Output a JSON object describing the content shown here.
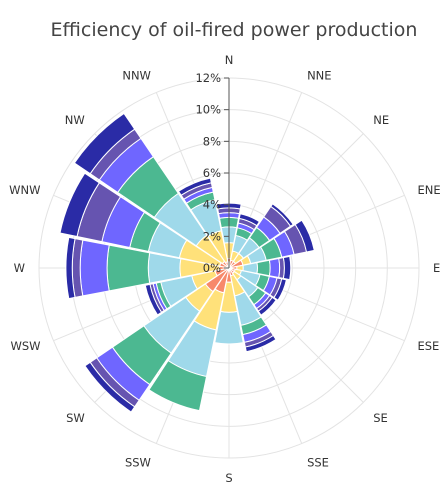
{
  "chart_data": {
    "type": "polar-stacked-bar",
    "title": "Efficiency of oil-fired power production",
    "directions": [
      "N",
      "NNE",
      "NE",
      "ENE",
      "E",
      "ESE",
      "SE",
      "SSE",
      "S",
      "SSW",
      "SW",
      "WSW",
      "W",
      "WNW",
      "NW",
      "NNW"
    ],
    "radial_ticks": [
      "0%",
      "2%",
      "4%",
      "6%",
      "8%",
      "10%",
      "12%"
    ],
    "rlim": [
      0,
      12
    ],
    "grid": true,
    "legend": "none",
    "colors": [
      "#f7896b",
      "#ffe17a",
      "#9fd9ea",
      "#4cb891",
      "#6f66ff",
      "#6654b0",
      "#2a2ba6"
    ],
    "series": [
      {
        "values": [
          0.6,
          0.5,
          0.5,
          0.9,
          0.5,
          0.4,
          0.4,
          0.5,
          0.9,
          1.6,
          1.8,
          0.9,
          0.6,
          0.6,
          0.5,
          0.4
        ]
      },
      {
        "values": [
          1.0,
          0.6,
          0.6,
          0.5,
          0.4,
          0.4,
          0.5,
          1.3,
          1.9,
          2.4,
          1.5,
          1.5,
          2.5,
          2.6,
          2.0,
          2.0
        ]
      },
      {
        "values": [
          1.0,
          1.0,
          1.2,
          1.0,
          0.9,
          1.2,
          1.3,
          1.9,
          2.0,
          3.0,
          3.2,
          2.0,
          2.0,
          2.0,
          3.2,
          2.0
        ]
      },
      {
        "values": [
          0.6,
          0.5,
          0.8,
          1.0,
          0.8,
          0.6,
          0.6,
          0.6,
          0.0,
          2.2,
          2.4,
          0.3,
          2.6,
          1.2,
          2.8,
          0.5
        ]
      },
      {
        "values": [
          0.3,
          0.3,
          0.8,
          0.8,
          0.6,
          0.5,
          0.3,
          0.5,
          0.0,
          0.0,
          1.2,
          0.2,
          1.7,
          1.8,
          1.4,
          0.3
        ]
      },
      {
        "values": [
          0.3,
          0.3,
          0.8,
          0.8,
          0.3,
          0.3,
          0.2,
          0.3,
          0.0,
          0.0,
          0.5,
          0.2,
          0.5,
          1.6,
          0.7,
          0.3
        ]
      },
      {
        "values": [
          0.3,
          0.3,
          0.2,
          0.5,
          0.4,
          0.3,
          0.3,
          0.3,
          0.0,
          0.0,
          0.4,
          0.3,
          0.4,
          1.1,
          1.2,
          0.3
        ]
      }
    ]
  }
}
